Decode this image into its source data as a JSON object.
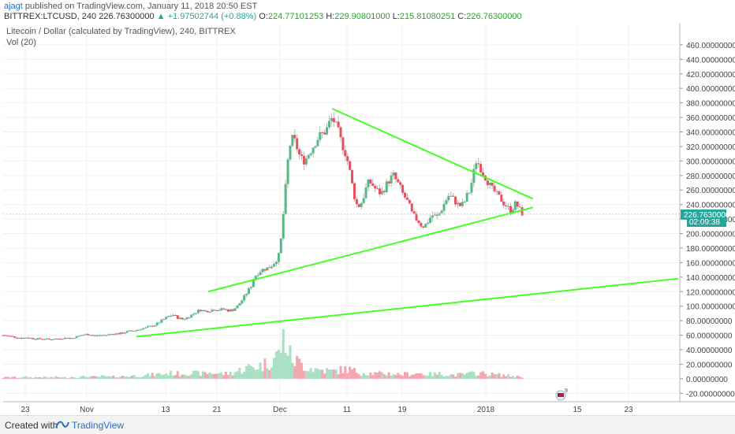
{
  "header": {
    "author": "ajagt",
    "published_text": "published on TradingView.com, January 11, 2018 20:50 EST",
    "symbol": "BITTREX:LTCUSD, 240",
    "last": "226.76300000",
    "change": "+1.97502744 (+0.88%)",
    "o_label": "O:",
    "o_value": "224.77101253",
    "h_label": "H:",
    "h_value": "229.90801000",
    "l_label": "L:",
    "l_value": "215.81080251",
    "c_label": "C:",
    "c_value": "226.76300000"
  },
  "legend": {
    "title": "Litecoin / Dollar (calculated by TradingView), 240, BITTREX",
    "volume": "Vol (20)"
  },
  "footer": {
    "created_with": "Created with",
    "brand": "TradingView"
  },
  "chart_data": {
    "type": "candlestick",
    "y_ticks": [
      "460.00000000",
      "440.00000000",
      "420.00000000",
      "400.00000000",
      "380.00000000",
      "360.00000000",
      "340.00000000",
      "320.00000000",
      "300.00000000",
      "280.00000000",
      "260.00000000",
      "240.00000000",
      "220.00000000",
      "200.00000000",
      "180.00000000",
      "160.00000000",
      "140.00000000",
      "120.00000000",
      "100.00000000",
      "80.00000000",
      "60.00000000",
      "40.00000000",
      "20.00000000",
      "0.00000000",
      "-20.00000000"
    ],
    "ylim": [
      -24,
      474
    ],
    "x_ticks": [
      "23",
      "Nov",
      "13",
      "21",
      "Dec",
      "11",
      "19",
      "2018",
      "15",
      "23"
    ],
    "price_label": "226.76300000",
    "countdown": "02:09:38",
    "last_price": 226.763,
    "price_path": [
      [
        0,
        60
      ],
      [
        0.3,
        59
      ],
      [
        0.6,
        58
      ],
      [
        0.9,
        57
      ],
      [
        1.2,
        56
      ],
      [
        1.5,
        57
      ],
      [
        1.8,
        56
      ],
      [
        2.1,
        55
      ],
      [
        2.4,
        55
      ],
      [
        2.7,
        55
      ],
      [
        3.0,
        54
      ],
      [
        3.3,
        55
      ],
      [
        3.6,
        55
      ],
      [
        3.9,
        56
      ],
      [
        4.2,
        56
      ],
      [
        4.5,
        56
      ],
      [
        4.8,
        58
      ],
      [
        5.1,
        60
      ],
      [
        5.4,
        61
      ],
      [
        5.7,
        61
      ],
      [
        6.0,
        59
      ],
      [
        6.3,
        60
      ],
      [
        6.6,
        60
      ],
      [
        6.9,
        61
      ],
      [
        7.2,
        62
      ],
      [
        7.5,
        62
      ],
      [
        7.8,
        63
      ],
      [
        8.1,
        65
      ],
      [
        8.4,
        66
      ],
      [
        8.7,
        67
      ],
      [
        9.0,
        69
      ],
      [
        9.3,
        70
      ],
      [
        9.6,
        72
      ],
      [
        9.9,
        74
      ],
      [
        10.2,
        78
      ],
      [
        10.5,
        82
      ],
      [
        10.8,
        86
      ],
      [
        11.1,
        88
      ],
      [
        11.4,
        84
      ],
      [
        11.7,
        82
      ],
      [
        12.0,
        84
      ],
      [
        12.3,
        88
      ],
      [
        12.6,
        92
      ],
      [
        12.9,
        95
      ],
      [
        13.2,
        93
      ],
      [
        13.5,
        94
      ],
      [
        13.8,
        96
      ],
      [
        14.1,
        95
      ],
      [
        14.4,
        96
      ],
      [
        14.7,
        94
      ],
      [
        15.0,
        95
      ],
      [
        15.3,
        100
      ],
      [
        15.6,
        108
      ],
      [
        15.9,
        118
      ],
      [
        16.2,
        128
      ],
      [
        16.4,
        140
      ],
      [
        16.6,
        145
      ],
      [
        16.9,
        150
      ],
      [
        17.2,
        152
      ],
      [
        17.5,
        155
      ],
      [
        17.8,
        162
      ],
      [
        18.0,
        170
      ],
      [
        18.1,
        180
      ],
      [
        18.25,
        215
      ],
      [
        18.4,
        250
      ],
      [
        18.55,
        290
      ],
      [
        18.7,
        320
      ],
      [
        18.9,
        330
      ],
      [
        19.1,
        326
      ],
      [
        19.3,
        310
      ],
      [
        19.5,
        303
      ],
      [
        19.7,
        300
      ],
      [
        19.9,
        308
      ],
      [
        20.1,
        315
      ],
      [
        20.3,
        322
      ],
      [
        20.5,
        330
      ],
      [
        20.7,
        335
      ],
      [
        20.9,
        338
      ],
      [
        21.1,
        342
      ],
      [
        21.3,
        352
      ],
      [
        21.5,
        360
      ],
      [
        21.7,
        350
      ],
      [
        21.9,
        340
      ],
      [
        22.1,
        325
      ],
      [
        22.3,
        315
      ],
      [
        22.5,
        300
      ],
      [
        22.7,
        280
      ],
      [
        22.9,
        255
      ],
      [
        23.1,
        240
      ],
      [
        23.3,
        238
      ],
      [
        23.5,
        248
      ],
      [
        23.7,
        262
      ],
      [
        23.9,
        272
      ],
      [
        24.1,
        268
      ],
      [
        24.3,
        262
      ],
      [
        24.5,
        258
      ],
      [
        24.7,
        255
      ],
      [
        24.9,
        262
      ],
      [
        25.1,
        270
      ],
      [
        25.3,
        276
      ],
      [
        25.5,
        280
      ],
      [
        25.7,
        272
      ],
      [
        25.9,
        265
      ],
      [
        26.1,
        255
      ],
      [
        26.3,
        248
      ],
      [
        26.5,
        240
      ],
      [
        26.7,
        228
      ],
      [
        26.9,
        222
      ],
      [
        27.1,
        218
      ],
      [
        27.3,
        212
      ],
      [
        27.5,
        210
      ],
      [
        27.7,
        215
      ],
      [
        27.9,
        222
      ],
      [
        28.1,
        226
      ],
      [
        28.3,
        222
      ],
      [
        28.5,
        228
      ],
      [
        28.7,
        236
      ],
      [
        28.9,
        245
      ],
      [
        29.1,
        252
      ],
      [
        29.3,
        250
      ],
      [
        29.5,
        245
      ],
      [
        29.7,
        240
      ],
      [
        29.9,
        238
      ],
      [
        30.1,
        242
      ],
      [
        30.3,
        252
      ],
      [
        30.5,
        260
      ],
      [
        30.7,
        280
      ],
      [
        30.9,
        300
      ],
      [
        31.1,
        295
      ],
      [
        31.3,
        285
      ],
      [
        31.5,
        278
      ],
      [
        31.7,
        270
      ],
      [
        31.9,
        262
      ],
      [
        32.1,
        258
      ],
      [
        32.3,
        252
      ],
      [
        32.5,
        248
      ],
      [
        32.7,
        242
      ],
      [
        32.9,
        238
      ],
      [
        33.1,
        232
      ],
      [
        33.3,
        236
      ],
      [
        33.5,
        242
      ],
      [
        33.7,
        234
      ],
      [
        33.9,
        228
      ],
      [
        34.0,
        226.763
      ]
    ],
    "volume_path": [
      [
        0,
        2
      ],
      [
        0.5,
        3
      ],
      [
        1,
        2
      ],
      [
        1.5,
        3
      ],
      [
        2,
        2
      ],
      [
        2.5,
        3
      ],
      [
        3,
        2
      ],
      [
        3.5,
        3
      ],
      [
        4,
        2
      ],
      [
        4.5,
        3
      ],
      [
        5,
        3
      ],
      [
        5.5,
        4
      ],
      [
        6,
        3
      ],
      [
        6.5,
        4
      ],
      [
        7,
        3
      ],
      [
        7.5,
        4
      ],
      [
        8,
        4
      ],
      [
        8.5,
        5
      ],
      [
        9,
        5
      ],
      [
        9.5,
        6
      ],
      [
        10,
        7
      ],
      [
        10.5,
        8
      ],
      [
        11,
        9
      ],
      [
        11.5,
        8
      ],
      [
        12,
        10
      ],
      [
        12.5,
        9
      ],
      [
        13,
        8
      ],
      [
        13.5,
        10
      ],
      [
        14,
        9
      ],
      [
        14.5,
        8
      ],
      [
        15,
        10
      ],
      [
        15.5,
        14
      ],
      [
        16,
        18
      ],
      [
        16.5,
        20
      ],
      [
        17,
        22
      ],
      [
        17.5,
        30
      ],
      [
        18,
        40
      ],
      [
        18.2,
        55
      ],
      [
        18.4,
        70
      ],
      [
        18.6,
        45
      ],
      [
        18.8,
        35
      ],
      [
        19,
        30
      ],
      [
        19.2,
        28
      ],
      [
        19.6,
        22
      ],
      [
        20,
        18
      ],
      [
        20.5,
        15
      ],
      [
        21,
        14
      ],
      [
        21.5,
        12
      ],
      [
        22,
        14
      ],
      [
        22.5,
        16
      ],
      [
        23,
        12
      ],
      [
        23.5,
        10
      ],
      [
        24,
        9
      ],
      [
        24.5,
        8
      ],
      [
        25,
        9
      ],
      [
        25.5,
        8
      ],
      [
        26,
        7
      ],
      [
        26.5,
        8
      ],
      [
        27,
        9
      ],
      [
        27.5,
        8
      ],
      [
        28,
        7
      ],
      [
        28.5,
        8
      ],
      [
        29,
        7
      ],
      [
        29.5,
        6
      ],
      [
        30,
        7
      ],
      [
        30.5,
        8
      ],
      [
        31,
        10
      ],
      [
        31.5,
        8
      ],
      [
        32,
        7
      ],
      [
        32.5,
        6
      ],
      [
        33,
        5
      ],
      [
        33.5,
        4
      ],
      [
        34,
        3
      ]
    ],
    "trendlines": [
      {
        "from": [
          21.5,
          372
        ],
        "to": [
          34.6,
          248
        ]
      },
      {
        "from": [
          34.6,
          236
        ],
        "to": [
          13.4,
          120
        ]
      },
      {
        "from": [
          8.7,
          58
        ],
        "to": [
          44.1,
          138
        ]
      }
    ],
    "x_range": [
      0,
      44.1
    ],
    "colors": {
      "up": "#53b987",
      "down": "#eb4d5c",
      "wick": "#b6b6b6",
      "trend": "#44ff22",
      "axis_label_bg": "#26a69a",
      "vol_up": "#a9dfc3",
      "vol_down": "#f3a6ad"
    }
  }
}
